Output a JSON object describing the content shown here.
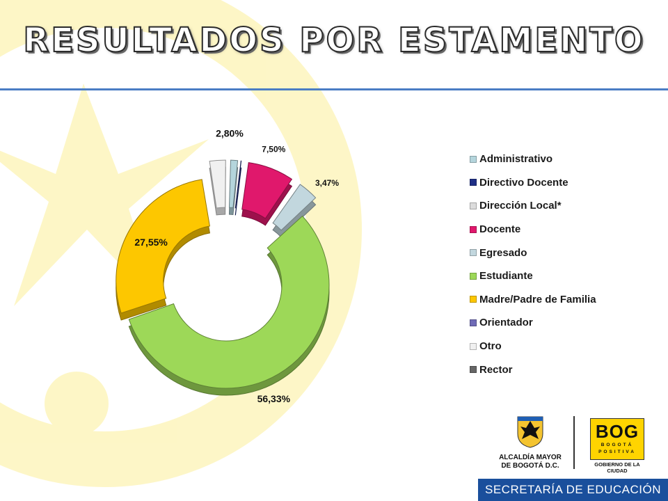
{
  "slide": {
    "title": "RESULTADOS POR ESTAMENTO"
  },
  "colors": {
    "background_motif": "#fdf6c4",
    "title_rule": "#4a7dc4",
    "footer_bar": "#1a4f9c"
  },
  "chart_data": {
    "type": "pie",
    "style": "3d-exploded-doughnut",
    "title": "",
    "legend_position": "right",
    "categories": [
      "Administrativo",
      "Directivo Docente",
      "Dirección Local*",
      "Docente",
      "Egresado",
      "Estudiante",
      "Madre/Padre de Familia",
      "Orientador",
      "Otro",
      "Rector"
    ],
    "values": [
      1.4,
      0.35,
      0.0,
      7.5,
      3.47,
      56.33,
      27.55,
      0.0,
      2.8,
      0.0
    ],
    "data_labels": [
      "",
      "",
      "",
      "7,50%",
      "3,47%",
      "56,33%",
      "27,55%",
      "",
      "2,80%",
      ""
    ],
    "colors": [
      "#b4d5dc",
      "#1f2f86",
      "#dcdcdc",
      "#e0186c",
      "#c2d7de",
      "#9dd858",
      "#fdc700",
      "#6f6bb6",
      "#f0f0f0",
      "#666666"
    ]
  },
  "logos": {
    "alcaldia_text": "ALCALDÍA MAYOR\nDE BOGOTÁ D.C.",
    "bog_word": "BOG",
    "bog_sub1": "BOGOTÁ",
    "bog_sub2": "POSITIVA",
    "gobierno": "GOBIERNO DE LA CIUDAD",
    "secretaria": "SECRETARÍA DE EDUCACIÓN"
  }
}
